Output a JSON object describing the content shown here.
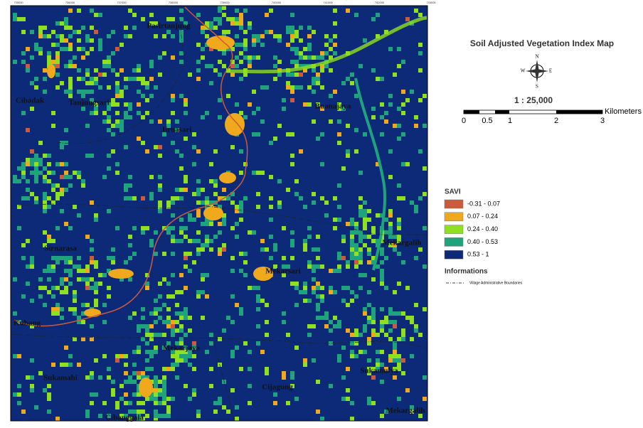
{
  "header": {
    "title": "Soil Adjusted Vegetation Index Map",
    "scale": "1 : 25,000"
  },
  "scale_bar": {
    "labels": [
      "0",
      "0.5",
      "1",
      "2",
      "3"
    ],
    "unit": "Kilometers"
  },
  "legend": {
    "title": "SAVI",
    "items": [
      {
        "label": "-0.31 - 0.07",
        "color": "#cc5a3c"
      },
      {
        "label": "0.07 - 0.24",
        "color": "#f0a91c"
      },
      {
        "label": "0.24 - 0.40",
        "color": "#8fe01e"
      },
      {
        "label": "0.40 - 0.53",
        "color": "#1fa37c"
      },
      {
        "label": "0.53 - 1",
        "color": "#0c2a78"
      }
    ]
  },
  "informations": {
    "title": "Informations",
    "item": "Village Administrative Boundaries"
  },
  "compass": [
    "N",
    "E",
    "S",
    "W"
  ],
  "grid_labels": [
    "735000",
    "736000",
    "737000",
    "738000",
    "739000",
    "740000",
    "741000",
    "742000",
    "743000"
  ],
  "villages": [
    "Pasirtanjung",
    "Cibadak",
    "Tanjungsari",
    "Jirnasari",
    "Buanajaya",
    "Sirnarasa",
    "Mekarsari",
    "Mekargalih",
    "Kubang",
    "Mekarjaya",
    "Sukamulya",
    "Sukamahi",
    "Cijagung",
    "Mekargalih",
    "Cibanggala"
  ]
}
